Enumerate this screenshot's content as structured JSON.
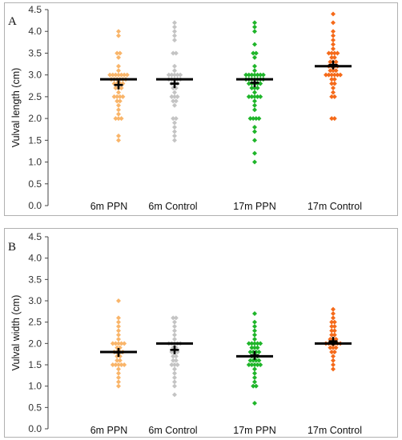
{
  "chart_data": [
    {
      "type": "scatter",
      "panel_label": "A",
      "ylabel": "Vulval length (cm)",
      "ylim": [
        0.0,
        4.5
      ],
      "yticks": [
        "0.0",
        "0.5",
        "1.0",
        "1.5",
        "2.0",
        "2.5",
        "3.0",
        "3.5",
        "4.0",
        "4.5"
      ],
      "categories": [
        "6m PPN",
        "6m Control",
        "17m PPN",
        "17m Control"
      ],
      "colors": [
        "#f9b56a",
        "#c4c4c4",
        "#1fb52a",
        "#f56a1a"
      ],
      "median": [
        2.9,
        2.9,
        2.9,
        3.2
      ],
      "mean": [
        2.77,
        2.8,
        2.82,
        3.23
      ],
      "series": [
        {
          "values": [
            4.0,
            3.9,
            3.5,
            3.5,
            3.4,
            3.2,
            3.1,
            3.0,
            3.0,
            3.0,
            3.0,
            3.0,
            3.0,
            3.0,
            2.9,
            2.9,
            2.9,
            2.9,
            2.9,
            2.9,
            2.8,
            2.8,
            2.8,
            2.8,
            2.7,
            2.7,
            2.7,
            2.6,
            2.5,
            2.5,
            2.5,
            2.5,
            2.4,
            2.4,
            2.3,
            2.2,
            2.1,
            2.0,
            2.0,
            2.0,
            1.6,
            1.5
          ]
        },
        {
          "values": [
            4.2,
            4.1,
            4.0,
            3.9,
            3.8,
            3.5,
            3.5,
            3.2,
            3.1,
            3.0,
            3.0,
            3.0,
            3.0,
            3.0,
            2.9,
            2.9,
            2.9,
            2.9,
            2.9,
            2.8,
            2.8,
            2.8,
            2.7,
            2.7,
            2.6,
            2.5,
            2.5,
            2.5,
            2.4,
            2.4,
            2.3,
            2.0,
            2.0,
            1.9,
            1.8,
            1.7,
            1.6,
            1.5
          ]
        },
        {
          "values": [
            4.2,
            4.1,
            4.0,
            3.7,
            3.5,
            3.5,
            3.4,
            3.2,
            3.1,
            3.0,
            3.0,
            3.0,
            3.0,
            3.0,
            3.0,
            3.0,
            2.9,
            2.9,
            2.9,
            2.9,
            2.9,
            2.9,
            2.9,
            2.8,
            2.8,
            2.8,
            2.8,
            2.8,
            2.7,
            2.7,
            2.7,
            2.6,
            2.5,
            2.5,
            2.5,
            2.5,
            2.5,
            2.4,
            2.3,
            2.2,
            2.0,
            2.0,
            2.0,
            2.0,
            1.8,
            1.7,
            1.5,
            1.2,
            1.0
          ]
        },
        {
          "values": [
            4.4,
            4.2,
            4.0,
            3.9,
            3.8,
            3.7,
            3.6,
            3.5,
            3.5,
            3.5,
            3.5,
            3.4,
            3.4,
            3.3,
            3.3,
            3.3,
            3.2,
            3.2,
            3.2,
            3.2,
            3.1,
            3.1,
            3.1,
            3.0,
            3.0,
            3.0,
            3.0,
            3.0,
            3.0,
            2.9,
            2.9,
            2.8,
            2.8,
            2.7,
            2.6,
            2.5,
            2.5,
            2.0,
            2.0
          ]
        }
      ]
    },
    {
      "type": "scatter",
      "panel_label": "B",
      "ylabel": "Vulval width (cm)",
      "ylim": [
        0.0,
        4.5
      ],
      "yticks": [
        "0.0",
        "0.5",
        "1.0",
        "1.5",
        "2.0",
        "2.5",
        "3.0",
        "3.5",
        "4.0",
        "4.5"
      ],
      "categories": [
        "6m PPN",
        "6m Control",
        "17m PPN",
        "17m Control"
      ],
      "colors": [
        "#f9b56a",
        "#c4c4c4",
        "#1fb52a",
        "#f56a1a"
      ],
      "median": [
        1.8,
        2.0,
        1.7,
        2.0
      ],
      "mean": [
        1.79,
        1.85,
        1.72,
        2.05
      ],
      "series": [
        {
          "values": [
            3.0,
            2.6,
            2.5,
            2.4,
            2.3,
            2.2,
            2.1,
            2.0,
            2.0,
            2.0,
            2.0,
            2.0,
            1.9,
            1.9,
            1.8,
            1.8,
            1.8,
            1.8,
            1.7,
            1.7,
            1.6,
            1.6,
            1.5,
            1.5,
            1.5,
            1.5,
            1.5,
            1.4,
            1.3,
            1.2,
            1.1,
            1.0
          ]
        },
        {
          "values": [
            2.6,
            2.6,
            2.5,
            2.4,
            2.3,
            2.2,
            2.1,
            2.0,
            2.0,
            2.0,
            2.0,
            2.0,
            1.9,
            1.9,
            1.8,
            1.8,
            1.8,
            1.7,
            1.7,
            1.6,
            1.6,
            1.5,
            1.5,
            1.5,
            1.4,
            1.3,
            1.2,
            1.1,
            1.0,
            0.8
          ]
        },
        {
          "values": [
            2.7,
            2.5,
            2.4,
            2.3,
            2.2,
            2.1,
            2.0,
            2.0,
            2.0,
            2.0,
            2.0,
            1.9,
            1.9,
            1.9,
            1.8,
            1.8,
            1.8,
            1.8,
            1.7,
            1.7,
            1.7,
            1.6,
            1.6,
            1.6,
            1.6,
            1.5,
            1.5,
            1.5,
            1.5,
            1.5,
            1.4,
            1.3,
            1.2,
            1.1,
            1.0,
            1.0,
            0.6
          ]
        },
        {
          "values": [
            2.8,
            2.7,
            2.6,
            2.5,
            2.5,
            2.4,
            2.4,
            2.3,
            2.3,
            2.2,
            2.2,
            2.1,
            2.1,
            2.1,
            2.0,
            2.0,
            2.0,
            2.0,
            2.0,
            2.0,
            1.9,
            1.9,
            1.9,
            1.8,
            1.8,
            1.7,
            1.6,
            1.5,
            1.4
          ]
        }
      ]
    }
  ]
}
